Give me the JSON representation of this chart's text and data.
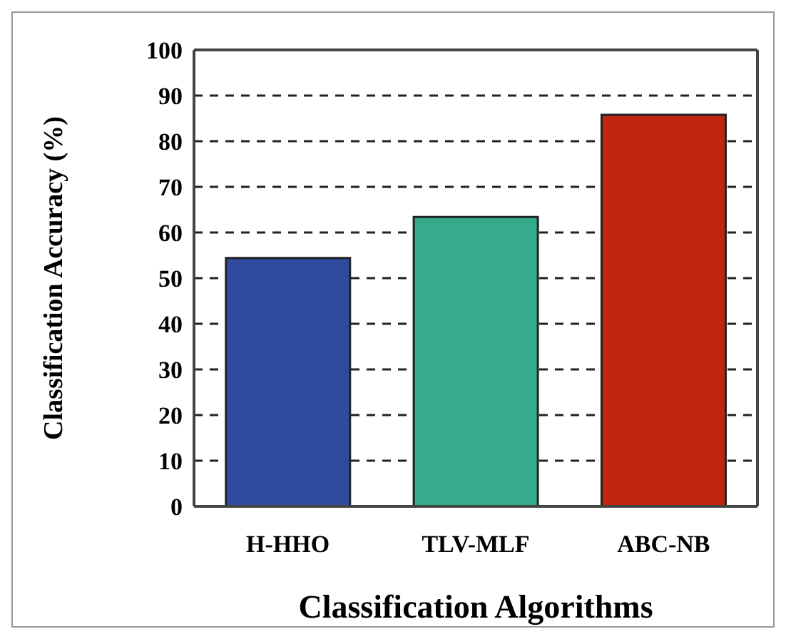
{
  "chart_data": {
    "type": "bar",
    "xlabel": "Classification Algorithms",
    "ylabel": "Classification Accuracy (%)",
    "categories": [
      "H-HHO",
      "TLV-MLF",
      "ABC-NB"
    ],
    "values": [
      54.4,
      63.4,
      85.8
    ],
    "colors": [
      "#2f4a9e",
      "#35ab8b",
      "#c0250f"
    ],
    "ylim": [
      0,
      100
    ],
    "yticks": [
      0,
      10,
      20,
      30,
      40,
      50,
      60,
      70,
      80,
      90,
      100
    ],
    "grid": "y",
    "legend": false
  }
}
